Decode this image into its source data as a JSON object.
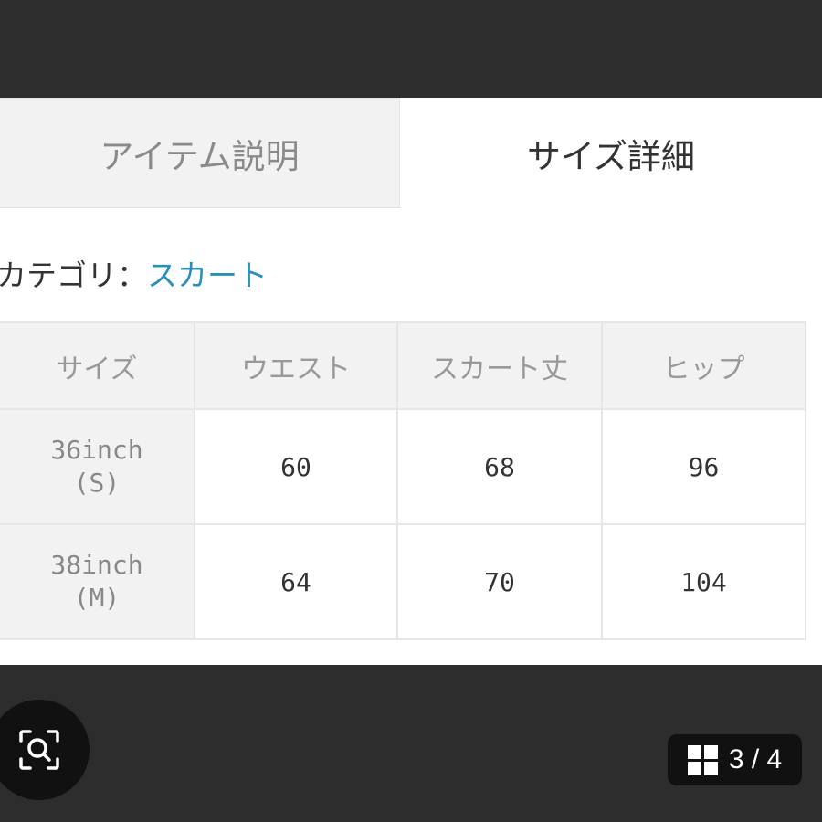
{
  "tabs": [
    {
      "label": "アイテム説明",
      "active": false
    },
    {
      "label": "サイズ詳細",
      "active": true
    }
  ],
  "category": {
    "label": "カテゴリ：",
    "value": "スカート"
  },
  "table": {
    "headers": [
      "サイズ",
      "ウエスト",
      "スカート丈",
      "ヒップ"
    ],
    "rows": [
      {
        "size": "36inch",
        "size_sub": "(S)",
        "values": [
          "60",
          "68",
          "96"
        ]
      },
      {
        "size": "38inch",
        "size_sub": "(M)",
        "values": [
          "64",
          "70",
          "104"
        ]
      }
    ]
  },
  "viewer": {
    "counter": "3 / 4",
    "zoom_icon": "zoom-scan-icon",
    "grid_icon": "grid-icon"
  }
}
